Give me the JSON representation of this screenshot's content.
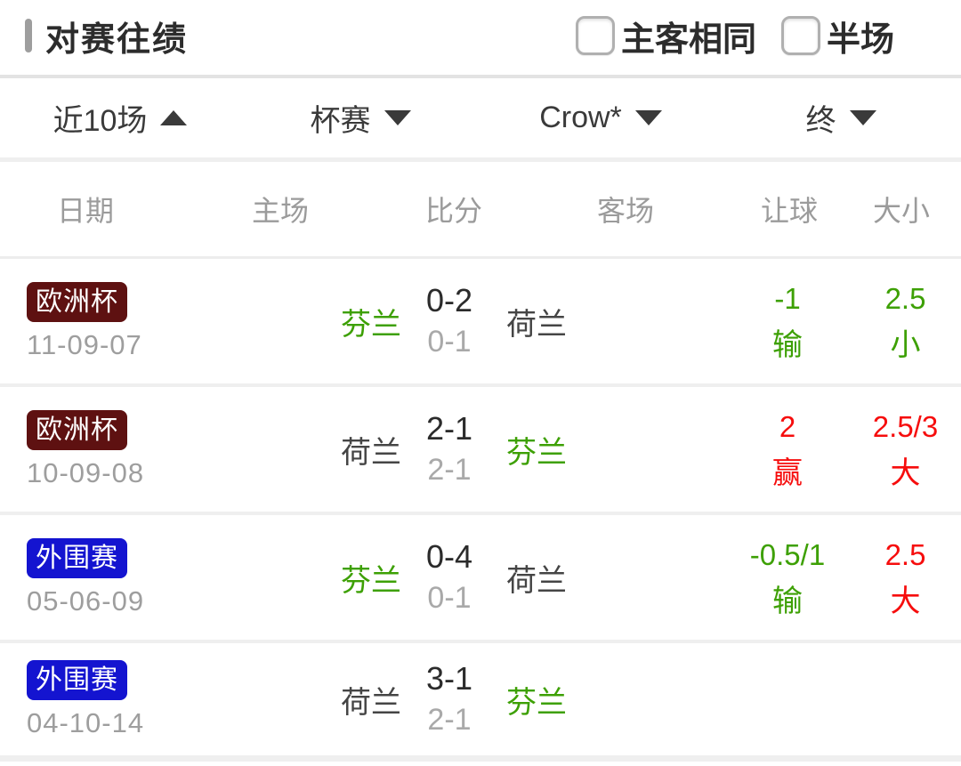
{
  "section": {
    "title": "对赛往绩",
    "checkboxes": [
      {
        "label": "主客相同",
        "checked": false
      },
      {
        "label": "半场",
        "checked": false
      }
    ]
  },
  "filters": [
    {
      "label": "近10场",
      "arrow": "up"
    },
    {
      "label": "杯赛",
      "arrow": "down"
    },
    {
      "label": "Crow*",
      "arrow": "down"
    },
    {
      "label": "终",
      "arrow": "down"
    }
  ],
  "table": {
    "columns": [
      "日期",
      "主场",
      "比分",
      "客场",
      "让球",
      "大小"
    ],
    "rows": [
      {
        "competition": "欧洲杯",
        "badge_color": "#5e1111",
        "date": "11-09-07",
        "home": "芬兰",
        "home_highlight": true,
        "ft_score": "0-2",
        "ht_score": "0-1",
        "away": "荷兰",
        "away_highlight": false,
        "handicap": {
          "value": "-1",
          "result": "输",
          "color": "green"
        },
        "ou": {
          "value": "2.5",
          "result": "小",
          "color": "green"
        }
      },
      {
        "competition": "欧洲杯",
        "badge_color": "#5e1111",
        "date": "10-09-08",
        "home": "荷兰",
        "home_highlight": false,
        "ft_score": "2-1",
        "ht_score": "2-1",
        "away": "芬兰",
        "away_highlight": true,
        "handicap": {
          "value": "2",
          "result": "赢",
          "color": "red"
        },
        "ou": {
          "value": "2.5/3",
          "result": "大",
          "color": "red"
        }
      },
      {
        "competition": "外围赛",
        "badge_color": "#1414d0",
        "date": "05-06-09",
        "home": "芬兰",
        "home_highlight": true,
        "ft_score": "0-4",
        "ht_score": "0-1",
        "away": "荷兰",
        "away_highlight": false,
        "handicap": {
          "value": "-0.5/1",
          "result": "输",
          "color": "green"
        },
        "ou": {
          "value": "2.5",
          "result": "大",
          "color": "red"
        }
      },
      {
        "competition": "外围赛",
        "badge_color": "#1414d0",
        "date": "04-10-14",
        "home": "荷兰",
        "home_highlight": false,
        "ft_score": "3-1",
        "ht_score": "2-1",
        "away": "芬兰",
        "away_highlight": true,
        "handicap": null,
        "ou": null
      }
    ]
  },
  "colors": {
    "highlight_green": "#3da004",
    "result_red": "#f60d0d",
    "badge_euro_cup": "#5e1111",
    "badge_qualifier": "#1414d0"
  }
}
